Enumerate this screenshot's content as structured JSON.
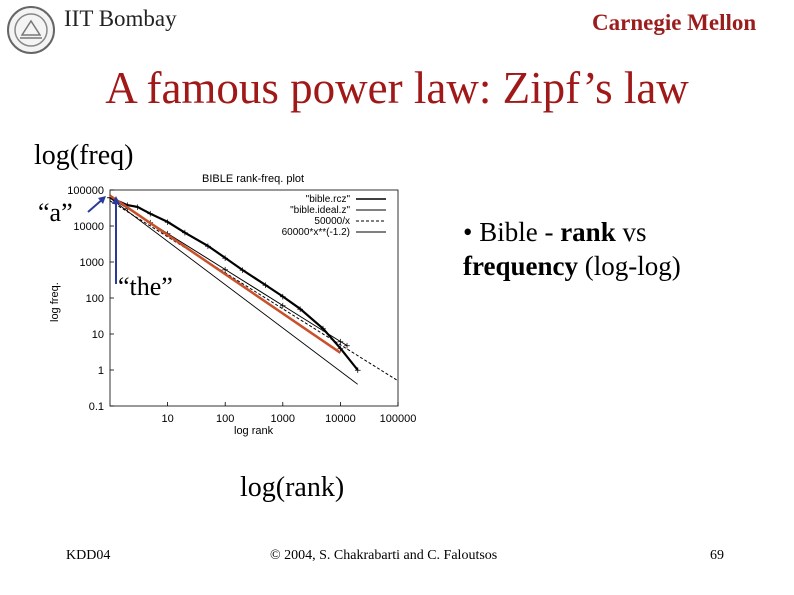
{
  "header": {
    "institution": "IIT Bombay",
    "university": "Carnegie Mellon"
  },
  "slide": {
    "title": "A famous power law: Zipf’s law",
    "y_axis_caption": "log(freq)",
    "x_axis_caption": "log(rank)",
    "annotation_a": "“a”",
    "annotation_the": "“the”",
    "bullet_prefix": "• Bible - ",
    "bullet_rank": "rank",
    "bullet_vs": " vs ",
    "bullet_frequency": "frequency",
    "bullet_suffix": " (log-log)"
  },
  "footer": {
    "left": "KDD04",
    "center": "© 2004, S. Chakrabarti and C. Faloutsos",
    "page": "69"
  },
  "colors": {
    "title": "#a01818",
    "university": "#9b1c1c",
    "fit_line": "#c8502a",
    "arrow": "#2a3a9a"
  },
  "chart_data": {
    "type": "line",
    "title": "BIBLE rank-freq. plot",
    "xlabel": "log rank",
    "ylabel": "log freq.",
    "x_scale": "log",
    "y_scale": "log",
    "xlim": [
      1,
      100000
    ],
    "ylim": [
      0.1,
      100000
    ],
    "x_ticks": [
      "10",
      "100",
      "1000",
      "10000",
      "100000"
    ],
    "x_tick_values": [
      10,
      100,
      1000,
      10000,
      100000
    ],
    "y_ticks": [
      "100000",
      "10000",
      "1000",
      "100",
      "10",
      "1",
      "0.1"
    ],
    "y_tick_values": [
      100000,
      10000,
      1000,
      100,
      10,
      1,
      0.1
    ],
    "legend_position": "top-right",
    "series": [
      {
        "name": "\"bible.rcz\"",
        "style": "points",
        "x": [
          1,
          2,
          3,
          5,
          10,
          20,
          50,
          100,
          200,
          500,
          1000,
          2000,
          5000,
          10000,
          20000
        ],
        "y": [
          62000,
          38000,
          34000,
          22000,
          13000,
          6500,
          2800,
          1300,
          600,
          230,
          110,
          50,
          14,
          4,
          1
        ]
      },
      {
        "name": "\"bible.ideal.z\"",
        "style": "points",
        "x": [
          1,
          2,
          5,
          10,
          100,
          1000,
          10000,
          13000
        ],
        "y": [
          62000,
          31000,
          12400,
          6200,
          620,
          62,
          6.2,
          4.8
        ]
      },
      {
        "name": "50000/x",
        "style": "dashed",
        "x": [
          1,
          100000
        ],
        "y": [
          50000,
          0.5
        ]
      },
      {
        "name": "60000*x**(-1.2)",
        "style": "solid",
        "x": [
          1,
          20000
        ],
        "y": [
          60000,
          0.4
        ]
      }
    ],
    "fit_line": {
      "x": [
        1,
        10000
      ],
      "y": [
        70000,
        3
      ]
    }
  }
}
